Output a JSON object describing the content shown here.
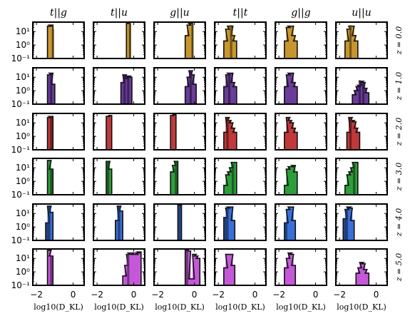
{
  "chart_data": {
    "type": "histogram-grid",
    "col_titles": [
      "t||g",
      "t||u",
      "g||u",
      "t||t",
      "g||g",
      "u||u"
    ],
    "row_labels": [
      "z = 0.0",
      "z = 1.0",
      "z = 2.0",
      "z = 3.0",
      "z = 4.0",
      "z = 5.0"
    ],
    "xlabel": "log10(D_KL)",
    "xlim": [
      -2.2,
      0.6
    ],
    "xticks": [
      -2,
      0
    ],
    "xtick_labels": [
      "−2",
      "0"
    ],
    "yscale": "log",
    "ylim": [
      0.1,
      50
    ],
    "yticks": [
      0.1,
      1,
      10
    ],
    "ytick_labels": [
      "10⁻¹",
      "10⁰",
      "10¹"
    ],
    "bin_width": 0.2,
    "row_colors": [
      "#c8962e",
      "#6a3d9a",
      "#c0393b",
      "#2e9e3a",
      "#3a6fd8",
      "#c458d8"
    ],
    "panels": [
      [
        {
          "bins": [
            [
              -1.4,
              25
            ],
            [
              -1.3,
              30
            ]
          ],
          "overlay": [
            [
              -1.2,
              15
            ]
          ]
        },
        {
          "bins": [
            [
              -0.4,
              40
            ]
          ],
          "overlay": [
            [
              -0.3,
              40
            ]
          ]
        },
        {
          "bins": [
            [
              -0.5,
              5
            ],
            [
              -0.4,
              30
            ],
            [
              -0.3,
              40
            ]
          ],
          "overlay": [
            [
              -0.2,
              40
            ]
          ]
        },
        {
          "bins": [
            [
              -1.7,
              2
            ],
            [
              -1.6,
              15
            ],
            [
              -1.5,
              25
            ],
            [
              -1.4,
              25
            ],
            [
              -1.3,
              5
            ],
            [
              -1.2,
              2
            ]
          ],
          "overlay": [
            [
              -1.4,
              30
            ]
          ]
        },
        {
          "bins": [
            [
              -1.7,
              2
            ],
            [
              -1.6,
              20
            ],
            [
              -1.5,
              25
            ],
            [
              -1.4,
              25
            ],
            [
              -1.3,
              5
            ],
            [
              -1.2,
              2
            ]
          ],
          "overlay": []
        },
        {
          "bins": [
            [
              -1.7,
              2
            ],
            [
              -1.6,
              15
            ],
            [
              -1.5,
              25
            ],
            [
              -1.4,
              25
            ],
            [
              -1.3,
              5
            ],
            [
              -1.2,
              2
            ]
          ],
          "overlay": [
            [
              -1.5,
              30
            ]
          ]
        }
      ],
      [
        {
          "bins": [
            [
              -1.4,
              15
            ],
            [
              -1.3,
              20
            ],
            [
              -1.2,
              3
            ]
          ],
          "overlay": [
            [
              -1.3,
              20
            ]
          ]
        },
        {
          "bins": [
            [
              -0.7,
              4
            ],
            [
              -0.6,
              15
            ],
            [
              -0.5,
              8
            ],
            [
              -0.4,
              12
            ],
            [
              -0.3,
              10
            ]
          ],
          "overlay": [
            [
              -0.6,
              15
            ],
            [
              -0.4,
              10
            ]
          ]
        },
        {
          "bins": [
            [
              -0.5,
              2
            ],
            [
              -0.4,
              10
            ],
            [
              -0.3,
              30
            ],
            [
              -0.2,
              15
            ],
            [
              -0.1,
              3
            ]
          ],
          "overlay": [
            [
              -0.3,
              30
            ]
          ]
        },
        {
          "bins": [
            [
              -1.7,
              2
            ],
            [
              -1.6,
              15
            ],
            [
              -1.5,
              20
            ],
            [
              -1.4,
              20
            ],
            [
              -1.3,
              4
            ],
            [
              -1.2,
              2
            ]
          ],
          "overlay": [
            [
              -1.5,
              20
            ]
          ]
        },
        {
          "bins": [
            [
              -1.7,
              2
            ],
            [
              -1.6,
              15
            ],
            [
              -1.5,
              20
            ],
            [
              -1.4,
              20
            ],
            [
              -1.3,
              4
            ],
            [
              -1.2,
              2
            ]
          ],
          "overlay": []
        },
        {
          "bins": [
            [
              -1.3,
              0.5
            ],
            [
              -1.2,
              1
            ],
            [
              -1.1,
              2
            ],
            [
              -1.0,
              2.5
            ],
            [
              -0.9,
              5
            ],
            [
              -0.8,
              4
            ],
            [
              -0.7,
              1.5
            ],
            [
              -0.6,
              0.7
            ]
          ],
          "overlay": [
            [
              -1.0,
              6
            ],
            [
              -0.8,
              4
            ]
          ]
        }
      ],
      [
        {
          "bins": [
            [
              -1.4,
              25
            ],
            [
              -1.3,
              30
            ]
          ],
          "overlay": [
            [
              -1.3,
              30
            ]
          ]
        },
        {
          "bins": [
            [
              -1.5,
              30
            ],
            [
              -1.4,
              35
            ]
          ],
          "overlay": []
        },
        {
          "bins": [
            [
              -1.3,
              35
            ],
            [
              -1.2,
              40
            ]
          ],
          "overlay": []
        },
        {
          "bins": [
            [
              -1.7,
              2
            ],
            [
              -1.6,
              25
            ],
            [
              -1.5,
              15
            ],
            [
              -1.4,
              10
            ],
            [
              -1.3,
              4
            ],
            [
              -1.2,
              2
            ]
          ],
          "overlay": [
            [
              -1.6,
              25
            ]
          ]
        },
        {
          "bins": [
            [
              -1.7,
              2
            ],
            [
              -1.6,
              25
            ],
            [
              -1.5,
              15
            ],
            [
              -1.4,
              10
            ],
            [
              -1.3,
              4
            ],
            [
              -1.2,
              2
            ]
          ],
          "overlay": []
        },
        {
          "bins": [
            [
              -1.6,
              2
            ],
            [
              -1.5,
              25
            ],
            [
              -1.4,
              15
            ],
            [
              -1.3,
              12
            ],
            [
              -1.2,
              4
            ],
            [
              -1.1,
              2
            ]
          ],
          "overlay": [
            [
              -1.5,
              25
            ]
          ]
        }
      ],
      [
        {
          "bins": [
            [
              -1.4,
              35
            ],
            [
              -1.3,
              8
            ]
          ],
          "overlay": [
            [
              -1.3,
              8
            ]
          ]
        },
        {
          "bins": [
            [
              -1.5,
              30
            ],
            [
              -1.4,
              8
            ]
          ],
          "overlay": [
            [
              -1.5,
              30
            ]
          ]
        },
        {
          "bins": [
            [
              -1.3,
              5
            ],
            [
              -1.2,
              15
            ],
            [
              -1.1,
              30
            ]
          ],
          "overlay": [
            [
              -1.1,
              30
            ]
          ]
        },
        {
          "bins": [
            [
              -1.7,
              0.5
            ],
            [
              -1.6,
              3
            ],
            [
              -1.5,
              5
            ],
            [
              -1.4,
              10
            ],
            [
              -1.3,
              25
            ],
            [
              -1.2,
              25
            ]
          ],
          "overlay": [
            [
              -1.3,
              20
            ]
          ]
        },
        {
          "bins": [
            [
              -1.7,
              0.5
            ],
            [
              -1.6,
              8
            ],
            [
              -1.5,
              12
            ],
            [
              -1.4,
              12
            ],
            [
              -1.3,
              15
            ],
            [
              -1.2,
              5
            ]
          ],
          "overlay": []
        },
        {
          "bins": [
            [
              -1.7,
              0.5
            ],
            [
              -1.6,
              3
            ],
            [
              -1.5,
              5
            ],
            [
              -1.4,
              10
            ],
            [
              -1.3,
              25
            ],
            [
              -1.2,
              25
            ]
          ],
          "overlay": [
            [
              -1.3,
              20
            ]
          ]
        }
      ],
      [
        {
          "bins": [
            [
              -1.5,
              2
            ],
            [
              -1.4,
              35
            ],
            [
              -1.3,
              12
            ]
          ],
          "overlay": [
            [
              -1.5,
              2
            ],
            [
              -1.4,
              35
            ]
          ]
        },
        {
          "bins": [
            [
              -1.0,
              3
            ],
            [
              -0.9,
              35
            ],
            [
              -0.8,
              15
            ]
          ],
          "overlay": [
            [
              -0.9,
              35
            ]
          ]
        },
        {
          "bins": [
            [
              -0.9,
              40
            ]
          ],
          "overlay": [
            [
              -0.9,
              40
            ]
          ]
        },
        {
          "bins": [
            [
              -1.7,
              5
            ],
            [
              -1.6,
              25
            ],
            [
              -1.5,
              30
            ],
            [
              -1.4,
              30
            ],
            [
              -1.3,
              3
            ]
          ],
          "overlay": [
            [
              -1.7,
              5
            ],
            [
              -1.6,
              25
            ]
          ]
        },
        {
          "bins": [
            [
              -1.7,
              2
            ],
            [
              -1.6,
              20
            ],
            [
              -1.5,
              30
            ],
            [
              -1.4,
              30
            ],
            [
              -1.3,
              3
            ]
          ],
          "overlay": [
            [
              -1.7,
              2
            ]
          ]
        },
        {
          "bins": [
            [
              -1.8,
              4
            ],
            [
              -1.7,
              20
            ],
            [
              -1.6,
              30
            ],
            [
              -1.5,
              25
            ],
            [
              -1.4,
              3
            ]
          ],
          "overlay": [
            [
              -1.8,
              4
            ],
            [
              -1.7,
              20
            ]
          ]
        }
      ],
      [
        {
          "bins": [
            [
              -1.4,
              40
            ],
            [
              -1.3,
              15
            ]
          ],
          "overlay": [
            [
              -1.3,
              15
            ]
          ]
        },
        {
          "bins": [
            [
              -0.6,
              0.5
            ],
            [
              -0.5,
              3
            ],
            [
              -0.4,
              20
            ],
            [
              -0.3,
              25
            ],
            [
              -0.2,
              25
            ],
            [
              -0.1,
              20
            ],
            [
              0.0,
              20
            ],
            [
              0.1,
              25
            ],
            [
              0.2,
              30
            ]
          ],
          "overlay": [
            [
              -0.4,
              20
            ]
          ]
        },
        {
          "bins": [
            [
              -0.5,
              40
            ],
            [
              -0.4,
              35
            ],
            [
              -0.3,
              0.3
            ],
            [
              -0.2,
              0.3
            ],
            [
              -0.1,
              20
            ],
            [
              0.0,
              15
            ],
            [
              0.1,
              10
            ]
          ],
          "overlay": [
            [
              -0.5,
              40
            ]
          ]
        },
        {
          "bins": [
            [
              -1.7,
              2
            ],
            [
              -1.6,
              20
            ],
            [
              -1.5,
              20
            ],
            [
              -1.4,
              20
            ],
            [
              -1.3,
              3
            ]
          ],
          "overlay": []
        },
        {
          "bins": [
            [
              -1.7,
              2
            ],
            [
              -1.6,
              10
            ],
            [
              -1.5,
              25
            ],
            [
              -1.4,
              20
            ],
            [
              -1.3,
              3
            ]
          ],
          "overlay": []
        },
        {
          "bins": [
            [
              -1.1,
              0.8
            ],
            [
              -1.0,
              2
            ],
            [
              -0.9,
              5
            ],
            [
              -0.8,
              4
            ],
            [
              -0.7,
              1.5
            ],
            [
              -0.6,
              0.8
            ]
          ],
          "overlay": []
        }
      ]
    ]
  }
}
